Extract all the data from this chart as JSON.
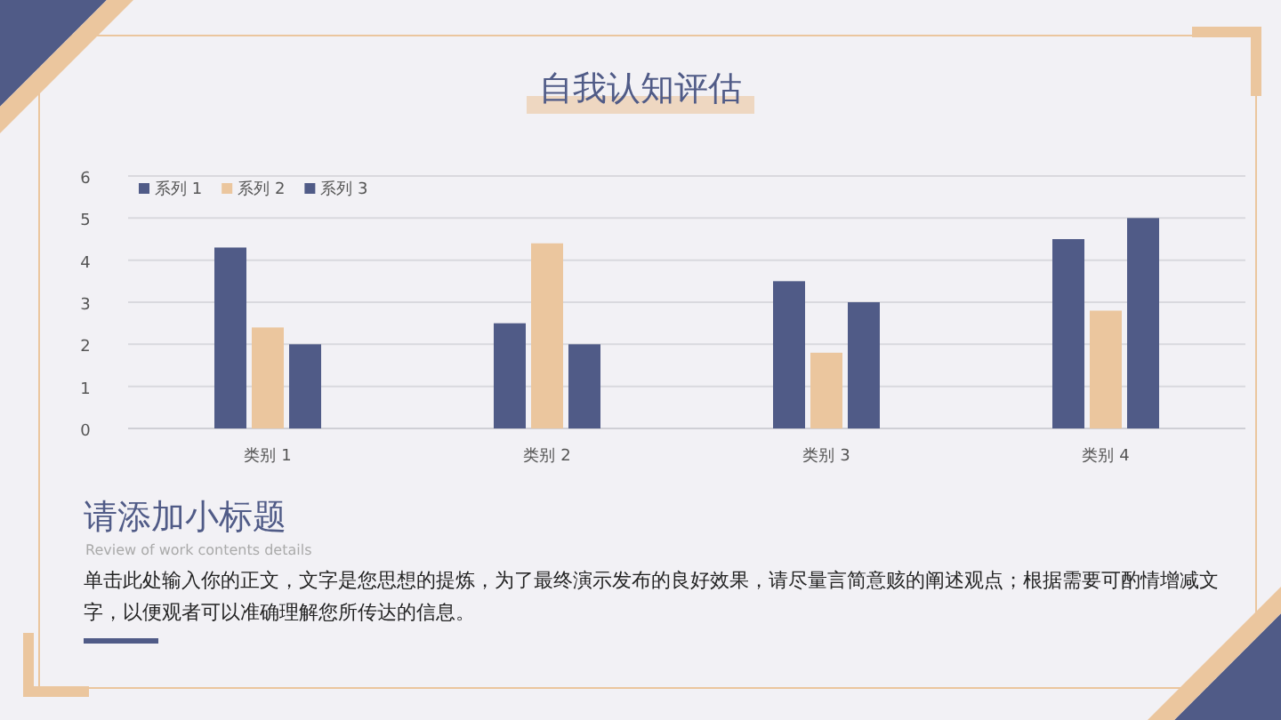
{
  "chart_data": {
    "type": "bar",
    "title": "自我认知评估",
    "subtitle": "请添加小标题",
    "annotations": [
      "Review of work contents details",
      "单击此处输入你的正文，文字是您思想的提炼，为了最终演示发布的良好效果，请尽量言简意赅的阐述观点；根据需要可酌情增减文字，以便观者可以准确理解您所传达的信息。"
    ],
    "categories": [
      "类别 1",
      "类别 2",
      "类别 3",
      "类别 4"
    ],
    "series": [
      {
        "name": "系列 1",
        "color": "#505b87",
        "values": [
          4.3,
          2.5,
          3.5,
          4.5
        ]
      },
      {
        "name": "系列 2",
        "color": "#ebc69e",
        "values": [
          2.4,
          4.4,
          1.8,
          2.8
        ]
      },
      {
        "name": "系列 3",
        "color": "#505b87",
        "values": [
          2,
          2,
          3,
          5
        ]
      }
    ],
    "ylim": [
      0,
      6
    ],
    "yticks": [
      0,
      1,
      2,
      3,
      4,
      5,
      6
    ],
    "grid": "y",
    "legend": "top left"
  }
}
